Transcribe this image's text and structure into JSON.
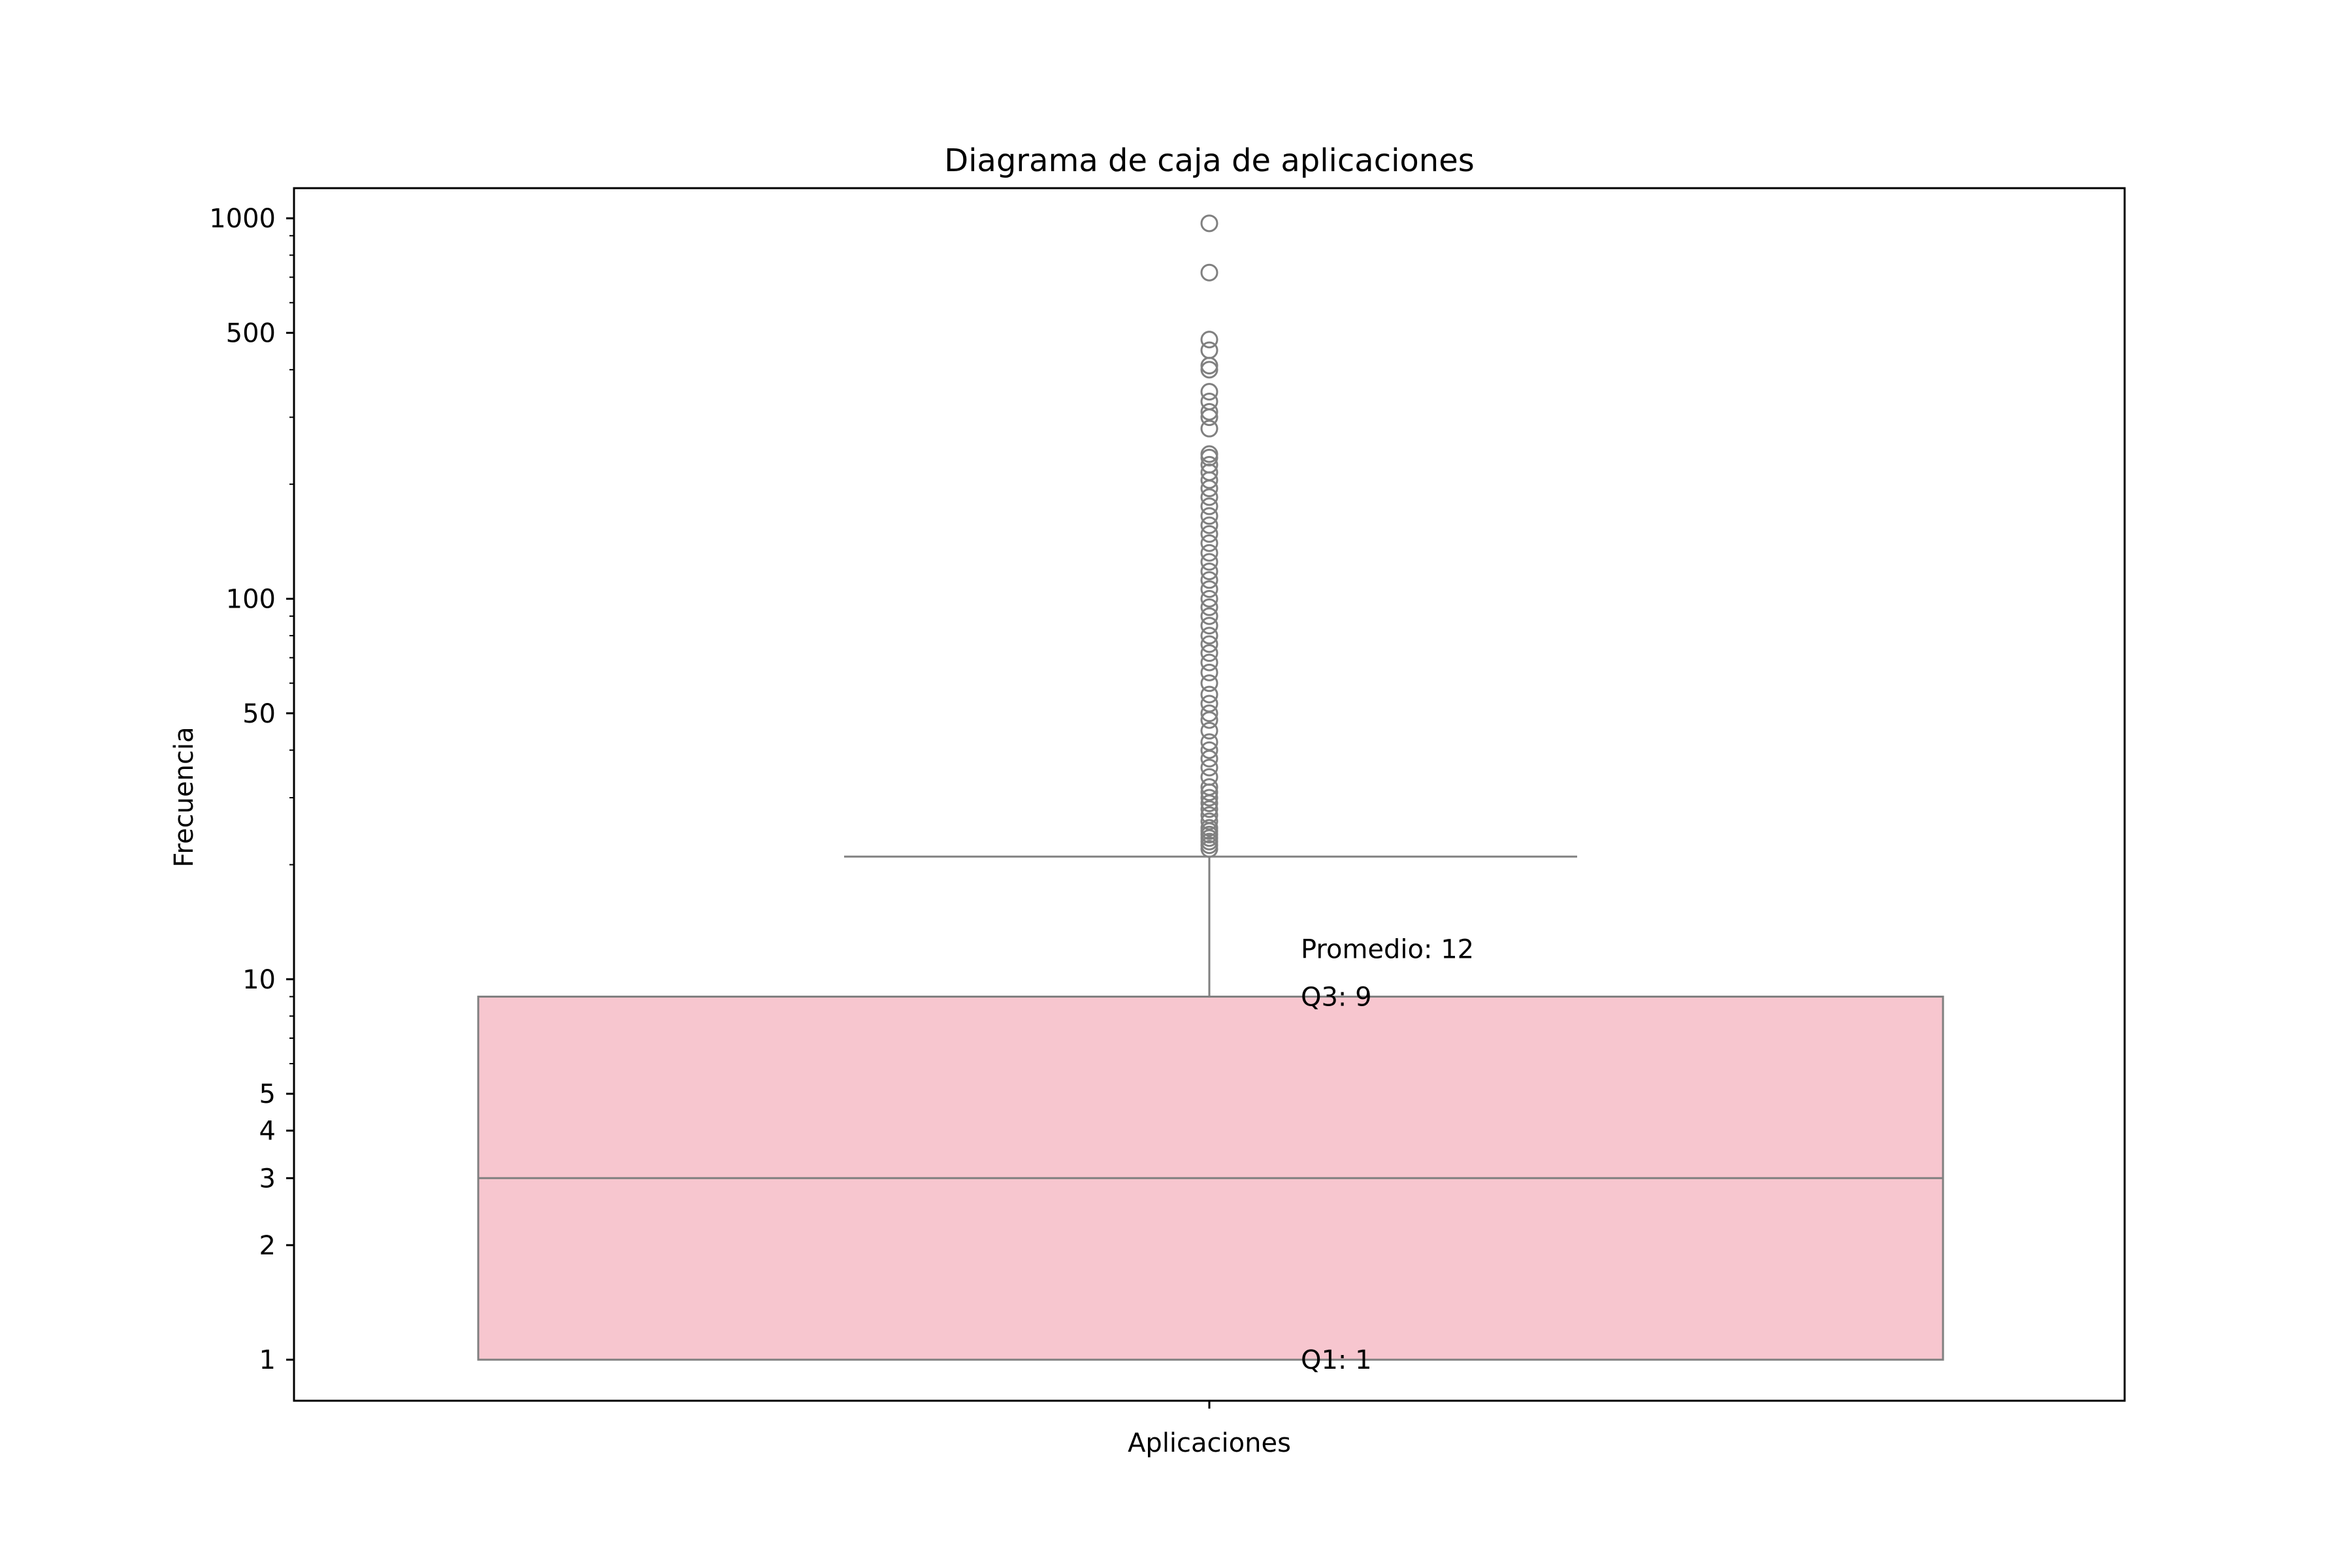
{
  "chart_data": {
    "type": "box",
    "title": "Diagrama de caja de aplicaciones",
    "xlabel": "",
    "ylabel": "Frecuencia",
    "y_scale": "log",
    "ylim": [
      0.78,
      1200
    ],
    "y_ticks": [
      {
        "value": 1,
        "label": "1"
      },
      {
        "value": 2,
        "label": "2"
      },
      {
        "value": 3,
        "label": "3"
      },
      {
        "value": 4,
        "label": "4"
      },
      {
        "value": 5,
        "label": "5"
      },
      {
        "value": 10,
        "label": "10"
      },
      {
        "value": 50,
        "label": "50"
      },
      {
        "value": 100,
        "label": "100"
      },
      {
        "value": 500,
        "label": "500"
      },
      {
        "value": 1000,
        "label": "1000"
      }
    ],
    "y_minor_ticks": [
      6,
      7,
      8,
      9,
      20,
      30,
      40,
      60,
      70,
      80,
      90,
      200,
      300,
      400,
      600,
      700,
      800,
      900
    ],
    "categories": [
      "Aplicaciones"
    ],
    "box": {
      "category": "Aplicaciones",
      "q1": 1,
      "median": 3,
      "q3": 9,
      "whisker_low": 1,
      "whisker_high": 21,
      "fill_color": "#f7c6cf",
      "line_color": "#808080"
    },
    "outliers": [
      22,
      22.5,
      23,
      23.5,
      24,
      24.5,
      25,
      26,
      27,
      28,
      29,
      30,
      31,
      32,
      34,
      36,
      38,
      40,
      42,
      45,
      48,
      50,
      53,
      56,
      60,
      64,
      68,
      72,
      76,
      80,
      85,
      90,
      95,
      100,
      106,
      112,
      118,
      125,
      132,
      140,
      148,
      156,
      165,
      175,
      185,
      195,
      205,
      215,
      225,
      235,
      240,
      280,
      300,
      310,
      330,
      350,
      400,
      410,
      450,
      480,
      720,
      970
    ],
    "annotations": [
      {
        "text": "Promedio: 12",
        "y": 12
      },
      {
        "text": "Q3: 9",
        "y": 9
      },
      {
        "text": "Q1: 1",
        "y": 1
      }
    ]
  }
}
